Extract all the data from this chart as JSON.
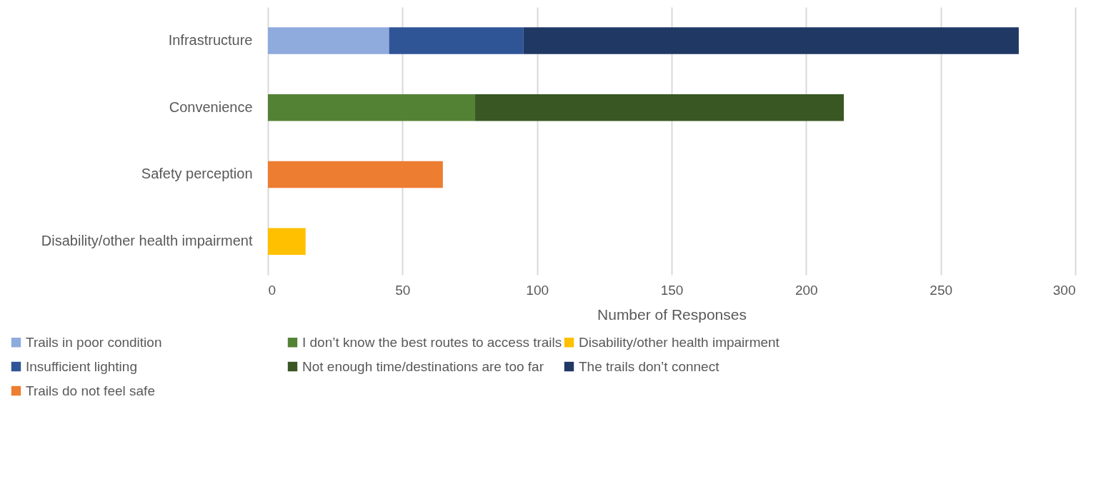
{
  "chart_data": {
    "type": "bar",
    "orientation": "horizontal",
    "stacked": true,
    "xlabel": "Number of Responses",
    "categories": [
      "Infrastructure",
      "Convenience",
      "Safety perception",
      "Disability/other health impairment"
    ],
    "series": [
      {
        "name": "Trails in poor condition",
        "color": "#8faadc",
        "values": [
          45,
          null,
          null,
          null
        ]
      },
      {
        "name": "Insufficient lighting",
        "color": "#2f5597",
        "values": [
          50,
          null,
          null,
          null
        ]
      },
      {
        "name": "The trails don’t connect",
        "color": "#203864",
        "values": [
          184,
          null,
          null,
          null
        ]
      },
      {
        "name": "I don’t know the best routes to access trails",
        "color": "#548235",
        "values": [
          null,
          77,
          null,
          null
        ]
      },
      {
        "name": "Not enough time/destinations are too far",
        "color": "#385723",
        "values": [
          null,
          137,
          null,
          null
        ]
      },
      {
        "name": "Trails do not feel safe",
        "color": "#ed7d31",
        "values": [
          null,
          null,
          65,
          null
        ]
      },
      {
        "name": "Disability/other health impairment",
        "color": "#ffc000",
        "values": [
          null,
          null,
          null,
          14
        ]
      }
    ],
    "xlim": [
      0,
      300
    ],
    "xticks": [
      0,
      50,
      100,
      150,
      200,
      250,
      300
    ],
    "grid": "x",
    "legend": "bottom"
  }
}
